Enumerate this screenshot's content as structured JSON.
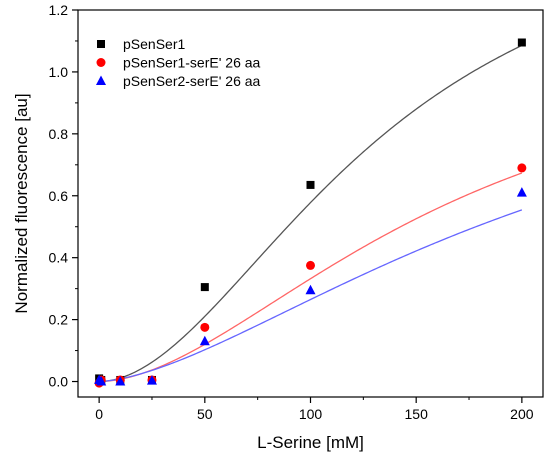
{
  "chart_data": {
    "type": "scatter",
    "title": "",
    "xlabel": "L-Serine [mM]",
    "ylabel": "Normalized fluorescence [au]",
    "xlim": [
      -10,
      210
    ],
    "ylim": [
      -0.05,
      1.2
    ],
    "xticks": [
      0,
      50,
      100,
      150,
      200
    ],
    "yticks": [
      0.0,
      0.2,
      0.4,
      0.6,
      0.8,
      1.0,
      1.2
    ],
    "xtick_labels": [
      "0",
      "50",
      "100",
      "150",
      "200"
    ],
    "ytick_labels": [
      "0.0",
      "0.2",
      "0.4",
      "0.6",
      "0.8",
      "1.0",
      "1.2"
    ],
    "grid": false,
    "legend_position": "top-left",
    "series": [
      {
        "name": "pSenSer1",
        "marker": "square",
        "color": "#000000",
        "fit_color": "#555555",
        "x": [
          0,
          1,
          10,
          25,
          50,
          100,
          200
        ],
        "y": [
          0.01,
          0.005,
          0.005,
          0.005,
          0.305,
          0.635,
          1.095
        ],
        "fit": {
          "base": 0.0,
          "max": 1.6,
          "k": 135,
          "n": 1.9
        }
      },
      {
        "name": "pSenSer1-serE' 26 aa",
        "marker": "circle",
        "color": "#ff0000",
        "fit_color": "#ff6666",
        "x": [
          0,
          1,
          10,
          25,
          50,
          100,
          200
        ],
        "y": [
          -0.005,
          0.005,
          0.005,
          0.005,
          0.175,
          0.375,
          0.69
        ],
        "fit": {
          "base": 0.0,
          "max": 1.15,
          "k": 165,
          "n": 1.8
        }
      },
      {
        "name": "pSenSer2-serE' 26 aa",
        "marker": "triangle",
        "color": "#0000ff",
        "fit_color": "#6666ff",
        "x": [
          0,
          1,
          10,
          25,
          50,
          100,
          200
        ],
        "y": [
          0.005,
          0.0,
          0.0,
          0.003,
          0.13,
          0.295,
          0.61
        ],
        "fit": {
          "base": 0.0,
          "max": 1.2,
          "k": 220,
          "n": 1.6
        }
      }
    ]
  }
}
